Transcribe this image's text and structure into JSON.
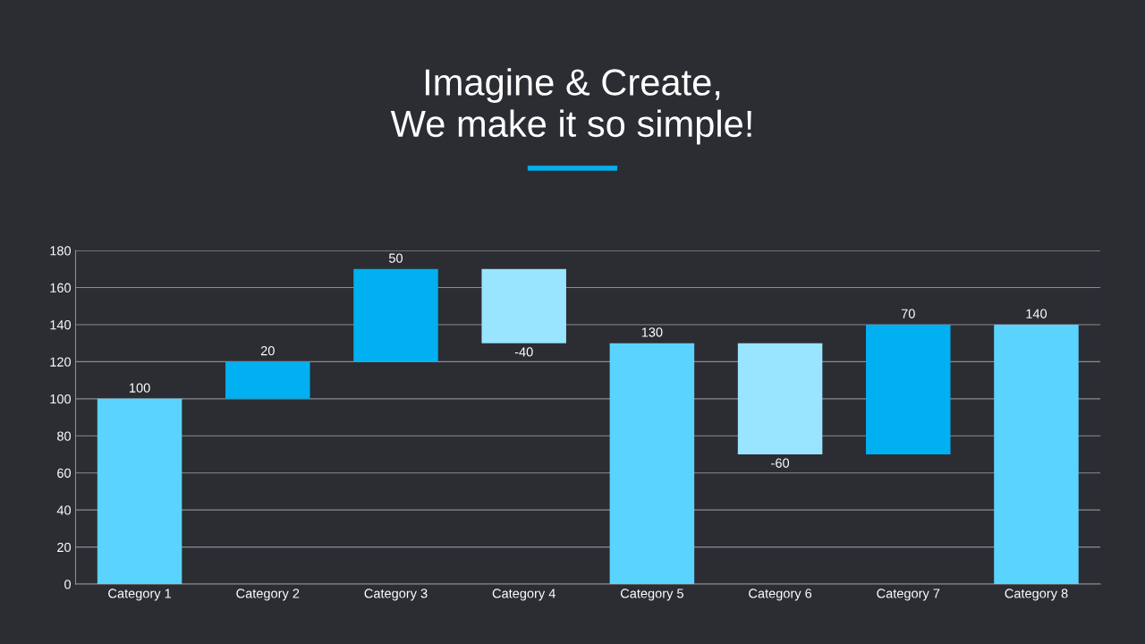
{
  "chart_data": {
    "type": "bar",
    "title": "Imagine & Create,\nWe make it so simple!",
    "categories": [
      "Category 1",
      "Category 2",
      "Category 3",
      "Category 4",
      "Category 5",
      "Category 6",
      "Category 7",
      "Category 8"
    ],
    "values": [
      100,
      20,
      50,
      -40,
      130,
      -60,
      70,
      140
    ],
    "base": [
      0,
      100,
      120,
      170,
      0,
      130,
      70,
      0
    ],
    "colors": [
      "#5bd3ff",
      "#00b0f0",
      "#00b0f0",
      "#99e4ff",
      "#5bd3ff",
      "#99e4ff",
      "#00b0f0",
      "#5bd3ff"
    ],
    "ylim": [
      0,
      180
    ],
    "yticks": [
      0,
      20,
      40,
      60,
      80,
      100,
      120,
      140,
      160,
      180
    ],
    "grid": "y",
    "data_labels": true
  }
}
